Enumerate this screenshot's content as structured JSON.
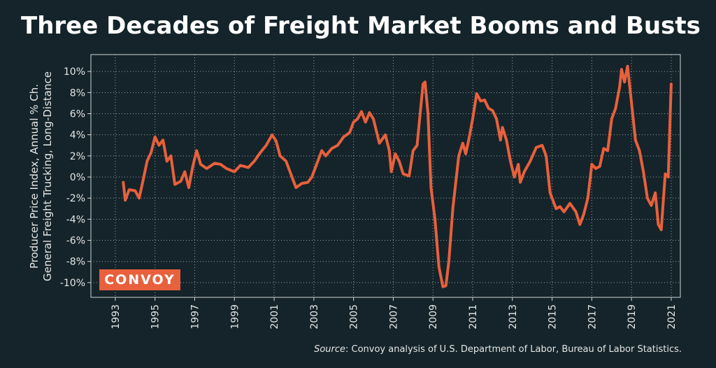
{
  "chart_data": {
    "type": "line",
    "title": "Three Decades of Freight Market Booms and Busts",
    "y_label": [
      "Producer Price Index, Annual % Ch.",
      "General Freight Trucking, Long-Distance"
    ],
    "logo": "CONVOY",
    "source_label": "Source",
    "source_text": ": Convoy analysis of U.S. Department of Labor, Bureau of Labor Statistics.",
    "color": "#e8603c",
    "grid": true,
    "xlim": [
      1991.77,
      2021.46
    ],
    "ylim": [
      -11.4,
      11.6
    ],
    "xticks": [
      1993,
      1995,
      1997,
      1999,
      2001,
      2003,
      2005,
      2007,
      2009,
      2011,
      2013,
      2015,
      2017,
      2019,
      2021
    ],
    "yticks": [
      {
        "value": -10,
        "label": "-10%"
      },
      {
        "value": -8,
        "label": "-8%"
      },
      {
        "value": -6,
        "label": "-6%"
      },
      {
        "value": -4,
        "label": "-4%"
      },
      {
        "value": -2,
        "label": "-2%"
      },
      {
        "value": 0,
        "label": "0%"
      },
      {
        "value": 2,
        "label": "2%"
      },
      {
        "value": 4,
        "label": "4%"
      },
      {
        "value": 6,
        "label": "6%"
      },
      {
        "value": 8,
        "label": "8%"
      },
      {
        "value": 10,
        "label": "10%"
      }
    ],
    "x": [
      1993.4,
      1993.5,
      1993.7,
      1994.0,
      1994.2,
      1994.4,
      1994.6,
      1994.8,
      1995.0,
      1995.2,
      1995.4,
      1995.6,
      1995.8,
      1996.0,
      1996.3,
      1996.5,
      1996.7,
      1996.9,
      1997.1,
      1997.3,
      1997.6,
      1998.0,
      1998.3,
      1998.6,
      1999.0,
      1999.3,
      1999.7,
      2000.0,
      2000.3,
      2000.6,
      2000.9,
      2001.1,
      2001.3,
      2001.6,
      2001.9,
      2002.1,
      2002.4,
      2002.7,
      2002.9,
      2003.2,
      2003.4,
      2003.6,
      2003.9,
      2004.2,
      2004.5,
      2004.8,
      2005.0,
      2005.2,
      2005.4,
      2005.6,
      2005.8,
      2006.0,
      2006.3,
      2006.6,
      2006.8,
      2006.9,
      2007.1,
      2007.3,
      2007.5,
      2007.8,
      2008.0,
      2008.2,
      2008.5,
      2008.6,
      2008.75,
      2008.9,
      2009.1,
      2009.3,
      2009.5,
      2009.65,
      2009.8,
      2010.0,
      2010.3,
      2010.5,
      2010.65,
      2010.8,
      2011.0,
      2011.2,
      2011.4,
      2011.6,
      2011.8,
      2012.0,
      2012.2,
      2012.4,
      2012.5,
      2012.7,
      2012.9,
      2013.1,
      2013.3,
      2013.4,
      2013.6,
      2013.9,
      2014.2,
      2014.5,
      2014.7,
      2014.9,
      2015.2,
      2015.4,
      2015.6,
      2015.9,
      2016.2,
      2016.4,
      2016.6,
      2016.8,
      2017.0,
      2017.2,
      2017.4,
      2017.6,
      2017.8,
      2018.0,
      2018.2,
      2018.4,
      2018.5,
      2018.65,
      2018.8,
      2019.0,
      2019.2,
      2019.4,
      2019.6,
      2019.8,
      2020.0,
      2020.2,
      2020.35,
      2020.5,
      2020.7,
      2020.85,
      2021.0
    ],
    "values": [
      -0.5,
      -2.2,
      -1.2,
      -1.3,
      -2.0,
      -0.3,
      1.5,
      2.3,
      3.8,
      3.0,
      3.5,
      1.5,
      2.0,
      -0.7,
      -0.4,
      0.5,
      -1.0,
      1.0,
      2.5,
      1.2,
      0.8,
      1.3,
      1.2,
      0.8,
      0.5,
      1.1,
      0.9,
      1.5,
      2.3,
      3.0,
      4.0,
      3.4,
      2.0,
      1.5,
      0.0,
      -1.0,
      -0.6,
      -0.5,
      0.0,
      1.5,
      2.5,
      2.0,
      2.7,
      3.0,
      3.8,
      4.2,
      5.2,
      5.5,
      6.2,
      5.2,
      6.1,
      5.5,
      3.2,
      4.0,
      2.5,
      0.5,
      2.2,
      1.5,
      0.3,
      0.1,
      2.5,
      3.0,
      8.8,
      9.0,
      6.0,
      -1.0,
      -4.0,
      -8.5,
      -10.4,
      -10.3,
      -8.0,
      -3.0,
      2.0,
      3.2,
      2.2,
      3.5,
      5.5,
      7.9,
      7.2,
      7.3,
      6.5,
      6.3,
      5.5,
      3.5,
      4.7,
      3.5,
      1.5,
      0.0,
      1.2,
      -0.5,
      0.5,
      1.5,
      2.8,
      3.0,
      2.0,
      -1.5,
      -3.0,
      -2.8,
      -3.3,
      -2.5,
      -3.3,
      -4.5,
      -3.5,
      -2.0,
      1.2,
      0.8,
      1.0,
      2.7,
      2.5,
      5.5,
      6.5,
      8.5,
      10.2,
      9.0,
      10.5,
      7.0,
      3.5,
      2.5,
      0.5,
      -2.0,
      -2.7,
      -1.5,
      -4.5,
      -5.0,
      0.3,
      0.0,
      8.8
    ]
  }
}
